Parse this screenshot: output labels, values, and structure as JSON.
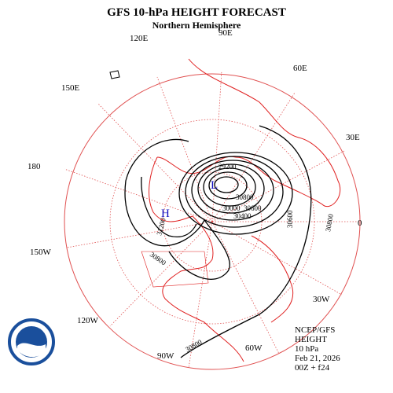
{
  "header": {
    "title": "GFS 10-hPa HEIGHT FORECAST",
    "subtitle": "Northern Hemisphere"
  },
  "longitude_labels": [
    "90E",
    "60E",
    "30E",
    "0",
    "30W",
    "60W",
    "90W",
    "120W",
    "150W",
    "180",
    "150E",
    "120E"
  ],
  "contour_labels": [
    "29200",
    "30000",
    "30400",
    "30600",
    "30800",
    "31200",
    "30800",
    "30600",
    "30800",
    "30800"
  ],
  "pressure_systems": [
    "L",
    "H"
  ],
  "info": [
    "NCEP/GFS",
    "HEIGHT",
    "10 hPa",
    "Feb 21, 2026",
    "00Z + f24"
  ]
}
